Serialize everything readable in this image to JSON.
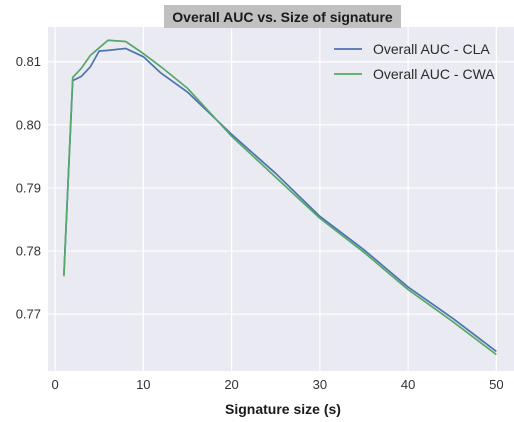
{
  "chart_data": {
    "type": "line",
    "title": "Overall AUC vs. Size of signature",
    "xlabel": "Signature size (s)",
    "ylabel": "",
    "xlim": [
      -0.8,
      52
    ],
    "ylim": [
      0.761,
      0.8155
    ],
    "xticks": [
      0,
      10,
      20,
      30,
      40,
      50
    ],
    "yticks": [
      0.77,
      0.78,
      0.79,
      0.8,
      0.81
    ],
    "ytick_labels": [
      "0.77",
      "0.78",
      "0.79",
      "0.80",
      "0.81"
    ],
    "grid": true,
    "background": "#eaeaf2",
    "legend_position": "top-right",
    "series": [
      {
        "name": "Overall AUC - CLA",
        "color": "#4c72b0",
        "x": [
          1,
          2,
          3,
          4,
          5,
          6,
          8,
          10,
          12,
          15,
          20,
          25,
          30,
          35,
          40,
          45,
          50
        ],
        "y": [
          0.7763,
          0.807,
          0.8077,
          0.8092,
          0.8117,
          0.8118,
          0.8121,
          0.8108,
          0.8082,
          0.8052,
          0.7985,
          0.7923,
          0.7855,
          0.7802,
          0.7743,
          0.7694,
          0.7641
        ]
      },
      {
        "name": "Overall AUC - CWA",
        "color": "#55a868",
        "x": [
          1,
          2,
          3,
          4,
          5,
          6,
          8,
          10,
          12,
          15,
          20,
          25,
          30,
          35,
          40,
          45,
          50
        ],
        "y": [
          0.776,
          0.8075,
          0.809,
          0.811,
          0.8122,
          0.8134,
          0.8132,
          0.8113,
          0.8092,
          0.8058,
          0.7982,
          0.7917,
          0.7852,
          0.7798,
          0.7739,
          0.7689,
          0.7636
        ]
      }
    ]
  }
}
